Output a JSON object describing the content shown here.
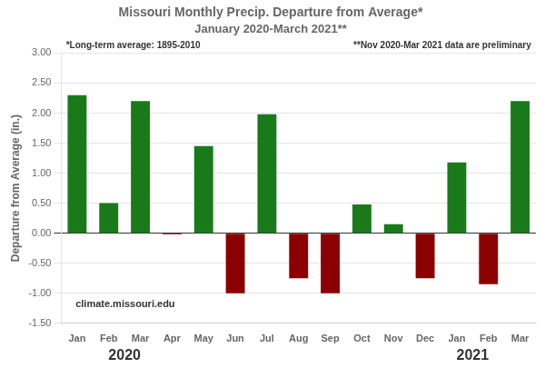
{
  "chart_data": {
    "type": "bar",
    "title": "Missouri Monthly Precip. Departure from Average*",
    "subtitle": "January 2020-March 2021**",
    "ylabel": "Departure from Average (in.)",
    "categories": [
      "Jan",
      "Feb",
      "Mar",
      "Apr",
      "May",
      "Jun",
      "Jul",
      "Aug",
      "Sep",
      "Oct",
      "Nov",
      "Dec",
      "Jan",
      "Feb",
      "Mar"
    ],
    "values": [
      2.3,
      0.5,
      2.2,
      -0.02,
      1.45,
      -1.0,
      1.98,
      -0.75,
      -1.0,
      0.48,
      0.15,
      -0.75,
      1.18,
      -0.85,
      2.2
    ],
    "colors": [
      "#1a7a1a",
      "#1a7a1a",
      "#1a7a1a",
      "#8b0000",
      "#1a7a1a",
      "#8b0000",
      "#1a7a1a",
      "#8b0000",
      "#8b0000",
      "#1a7a1a",
      "#1a7a1a",
      "#8b0000",
      "#1a7a1a",
      "#8b0000",
      "#1a7a1a"
    ],
    "ylim": [
      -1.5,
      3.0
    ],
    "yticks": [
      {
        "value": -1.5,
        "label": "-1.50"
      },
      {
        "value": -1.0,
        "label": "-1.00"
      },
      {
        "value": -0.5,
        "label": "-0.50"
      },
      {
        "value": 0,
        "label": "0.00"
      },
      {
        "value": 0.5,
        "label": "0.50"
      },
      {
        "value": 1.0,
        "label": "1.00"
      },
      {
        "value": 1.5,
        "label": "1.50"
      },
      {
        "value": 2.0,
        "label": "2.00"
      },
      {
        "value": 2.5,
        "label": "2.50"
      },
      {
        "value": 3.0,
        "label": "3.00"
      }
    ],
    "grid": true,
    "annotation_left": "*Long-term average: 1895-2010",
    "annotation_right": "**Nov 2020-Mar 2021 data are preliminary",
    "watermark": "climate.missouri.edu",
    "year_labels": [
      {
        "text": "2020",
        "x": 1.5
      },
      {
        "text": "2021",
        "x": 12.5
      }
    ]
  }
}
